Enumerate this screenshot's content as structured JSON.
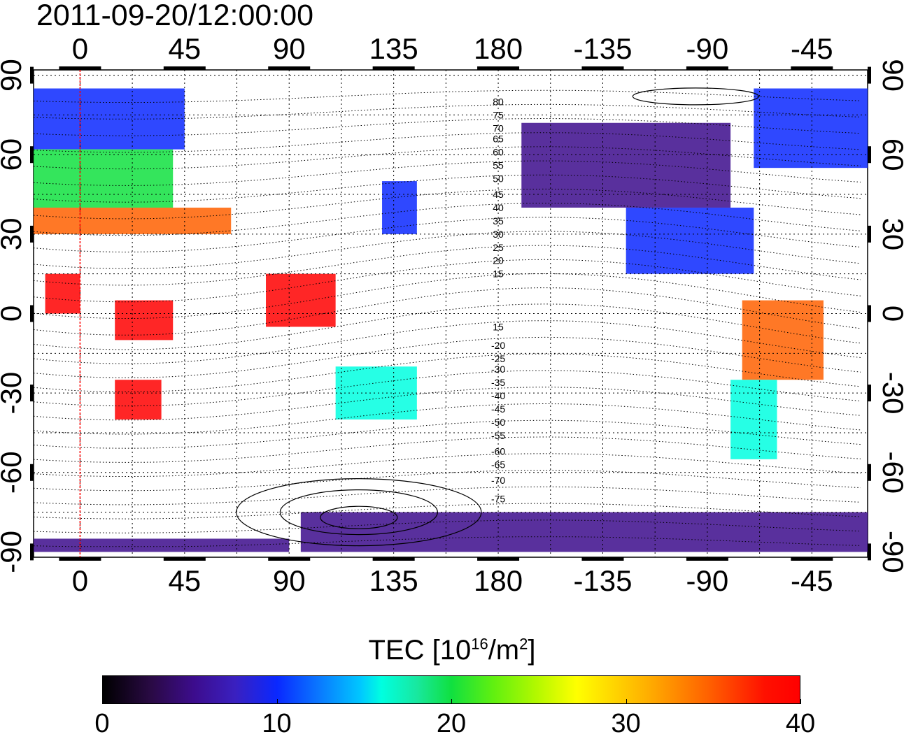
{
  "title": "2011-09-20/12:00:00",
  "map": {
    "lon_labels": [
      "0",
      "45",
      "90",
      "135",
      "180",
      "-135",
      "-90",
      "-45"
    ],
    "lat_labels_left": [
      "90",
      "60",
      "30",
      "0",
      "-30",
      "-60",
      "-90"
    ],
    "lat_labels_right": [
      "90",
      "60",
      "30",
      "0",
      "-30",
      "-60",
      "-90"
    ],
    "xlim": [
      -20,
      339
    ],
    "ylim": [
      -92,
      92
    ],
    "grid": "dotted",
    "vertical_marker_lon": 0,
    "vertical_marker_color": "#ff0000",
    "contour_labels": [
      "80",
      "75",
      "70",
      "65",
      "60",
      "55",
      "50",
      "45",
      "40",
      "35",
      "30",
      "25",
      "20",
      "15",
      "15",
      "-20",
      "-25",
      "-30",
      "-35",
      "-40",
      "-45",
      "-50",
      "-55",
      "-60",
      "-65",
      "-70",
      "-75"
    ]
  },
  "colorbar": {
    "title_prefix": "TEC  [10",
    "title_exp1": "16",
    "title_mid": "/m",
    "title_exp2": "2",
    "title_suffix": "]",
    "tick_labels": [
      "0",
      "10",
      "20",
      "30",
      "40"
    ],
    "range": [
      0,
      40
    ],
    "colors": [
      "#000000",
      "#3c0c8c",
      "#0a28ff",
      "#00ffe0",
      "#10e040",
      "#ffff00",
      "#ff6000",
      "#ff0000"
    ]
  }
}
